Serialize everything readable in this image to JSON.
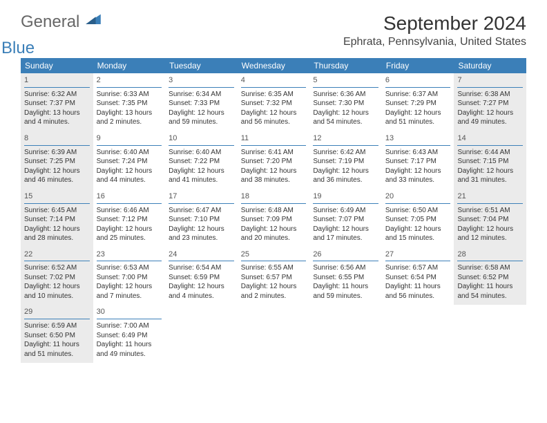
{
  "brand": {
    "name1": "General",
    "name2": "Blue"
  },
  "title": "September 2024",
  "location": "Ephrata, Pennsylvania, United States",
  "colors": {
    "header_bg": "#3b7fb8",
    "header_text": "#ffffff",
    "shade_bg": "#ebebeb",
    "rule": "#3b7fb8",
    "body_text": "#333333"
  },
  "day_headers": [
    "Sunday",
    "Monday",
    "Tuesday",
    "Wednesday",
    "Thursday",
    "Friday",
    "Saturday"
  ],
  "weeks": [
    [
      {
        "n": "1",
        "shaded": true,
        "sr": "Sunrise: 6:32 AM",
        "ss": "Sunset: 7:37 PM",
        "dl": "Daylight: 13 hours and 4 minutes."
      },
      {
        "n": "2",
        "shaded": false,
        "sr": "Sunrise: 6:33 AM",
        "ss": "Sunset: 7:35 PM",
        "dl": "Daylight: 13 hours and 2 minutes."
      },
      {
        "n": "3",
        "shaded": false,
        "sr": "Sunrise: 6:34 AM",
        "ss": "Sunset: 7:33 PM",
        "dl": "Daylight: 12 hours and 59 minutes."
      },
      {
        "n": "4",
        "shaded": false,
        "sr": "Sunrise: 6:35 AM",
        "ss": "Sunset: 7:32 PM",
        "dl": "Daylight: 12 hours and 56 minutes."
      },
      {
        "n": "5",
        "shaded": false,
        "sr": "Sunrise: 6:36 AM",
        "ss": "Sunset: 7:30 PM",
        "dl": "Daylight: 12 hours and 54 minutes."
      },
      {
        "n": "6",
        "shaded": false,
        "sr": "Sunrise: 6:37 AM",
        "ss": "Sunset: 7:29 PM",
        "dl": "Daylight: 12 hours and 51 minutes."
      },
      {
        "n": "7",
        "shaded": true,
        "sr": "Sunrise: 6:38 AM",
        "ss": "Sunset: 7:27 PM",
        "dl": "Daylight: 12 hours and 49 minutes."
      }
    ],
    [
      {
        "n": "8",
        "shaded": true,
        "sr": "Sunrise: 6:39 AM",
        "ss": "Sunset: 7:25 PM",
        "dl": "Daylight: 12 hours and 46 minutes."
      },
      {
        "n": "9",
        "shaded": false,
        "sr": "Sunrise: 6:40 AM",
        "ss": "Sunset: 7:24 PM",
        "dl": "Daylight: 12 hours and 44 minutes."
      },
      {
        "n": "10",
        "shaded": false,
        "sr": "Sunrise: 6:40 AM",
        "ss": "Sunset: 7:22 PM",
        "dl": "Daylight: 12 hours and 41 minutes."
      },
      {
        "n": "11",
        "shaded": false,
        "sr": "Sunrise: 6:41 AM",
        "ss": "Sunset: 7:20 PM",
        "dl": "Daylight: 12 hours and 38 minutes."
      },
      {
        "n": "12",
        "shaded": false,
        "sr": "Sunrise: 6:42 AM",
        "ss": "Sunset: 7:19 PM",
        "dl": "Daylight: 12 hours and 36 minutes."
      },
      {
        "n": "13",
        "shaded": false,
        "sr": "Sunrise: 6:43 AM",
        "ss": "Sunset: 7:17 PM",
        "dl": "Daylight: 12 hours and 33 minutes."
      },
      {
        "n": "14",
        "shaded": true,
        "sr": "Sunrise: 6:44 AM",
        "ss": "Sunset: 7:15 PM",
        "dl": "Daylight: 12 hours and 31 minutes."
      }
    ],
    [
      {
        "n": "15",
        "shaded": true,
        "sr": "Sunrise: 6:45 AM",
        "ss": "Sunset: 7:14 PM",
        "dl": "Daylight: 12 hours and 28 minutes."
      },
      {
        "n": "16",
        "shaded": false,
        "sr": "Sunrise: 6:46 AM",
        "ss": "Sunset: 7:12 PM",
        "dl": "Daylight: 12 hours and 25 minutes."
      },
      {
        "n": "17",
        "shaded": false,
        "sr": "Sunrise: 6:47 AM",
        "ss": "Sunset: 7:10 PM",
        "dl": "Daylight: 12 hours and 23 minutes."
      },
      {
        "n": "18",
        "shaded": false,
        "sr": "Sunrise: 6:48 AM",
        "ss": "Sunset: 7:09 PM",
        "dl": "Daylight: 12 hours and 20 minutes."
      },
      {
        "n": "19",
        "shaded": false,
        "sr": "Sunrise: 6:49 AM",
        "ss": "Sunset: 7:07 PM",
        "dl": "Daylight: 12 hours and 17 minutes."
      },
      {
        "n": "20",
        "shaded": false,
        "sr": "Sunrise: 6:50 AM",
        "ss": "Sunset: 7:05 PM",
        "dl": "Daylight: 12 hours and 15 minutes."
      },
      {
        "n": "21",
        "shaded": true,
        "sr": "Sunrise: 6:51 AM",
        "ss": "Sunset: 7:04 PM",
        "dl": "Daylight: 12 hours and 12 minutes."
      }
    ],
    [
      {
        "n": "22",
        "shaded": true,
        "sr": "Sunrise: 6:52 AM",
        "ss": "Sunset: 7:02 PM",
        "dl": "Daylight: 12 hours and 10 minutes."
      },
      {
        "n": "23",
        "shaded": false,
        "sr": "Sunrise: 6:53 AM",
        "ss": "Sunset: 7:00 PM",
        "dl": "Daylight: 12 hours and 7 minutes."
      },
      {
        "n": "24",
        "shaded": false,
        "sr": "Sunrise: 6:54 AM",
        "ss": "Sunset: 6:59 PM",
        "dl": "Daylight: 12 hours and 4 minutes."
      },
      {
        "n": "25",
        "shaded": false,
        "sr": "Sunrise: 6:55 AM",
        "ss": "Sunset: 6:57 PM",
        "dl": "Daylight: 12 hours and 2 minutes."
      },
      {
        "n": "26",
        "shaded": false,
        "sr": "Sunrise: 6:56 AM",
        "ss": "Sunset: 6:55 PM",
        "dl": "Daylight: 11 hours and 59 minutes."
      },
      {
        "n": "27",
        "shaded": false,
        "sr": "Sunrise: 6:57 AM",
        "ss": "Sunset: 6:54 PM",
        "dl": "Daylight: 11 hours and 56 minutes."
      },
      {
        "n": "28",
        "shaded": true,
        "sr": "Sunrise: 6:58 AM",
        "ss": "Sunset: 6:52 PM",
        "dl": "Daylight: 11 hours and 54 minutes."
      }
    ],
    [
      {
        "n": "29",
        "shaded": true,
        "sr": "Sunrise: 6:59 AM",
        "ss": "Sunset: 6:50 PM",
        "dl": "Daylight: 11 hours and 51 minutes."
      },
      {
        "n": "30",
        "shaded": false,
        "sr": "Sunrise: 7:00 AM",
        "ss": "Sunset: 6:49 PM",
        "dl": "Daylight: 11 hours and 49 minutes."
      },
      {
        "empty": true
      },
      {
        "empty": true
      },
      {
        "empty": true
      },
      {
        "empty": true
      },
      {
        "empty": true
      }
    ]
  ]
}
